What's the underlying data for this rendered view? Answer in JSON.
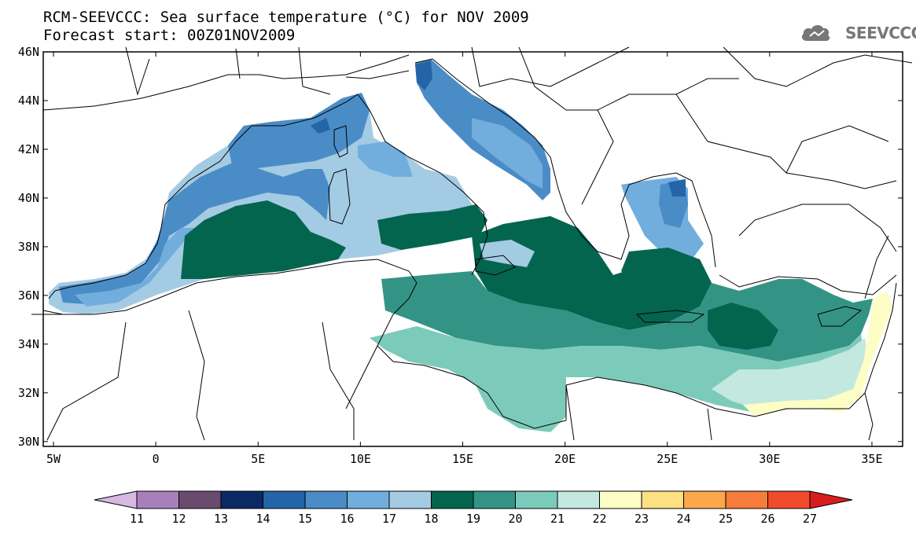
{
  "header": {
    "title_line1": "RCM-SEEVCCC: Sea surface temperature (°C) for NOV 2009",
    "title_line2": "Forecast start: 00Z01NOV2009"
  },
  "logo": {
    "text": "SEEVCCC",
    "icon": "cloud-icon"
  },
  "map": {
    "lat_labels": [
      "46N",
      "44N",
      "42N",
      "40N",
      "38N",
      "36N",
      "34N",
      "32N",
      "30N"
    ],
    "lon_labels": [
      "5W",
      "0",
      "5E",
      "10E",
      "15E",
      "20E",
      "25E",
      "30E",
      "35E"
    ],
    "lat_values": [
      46,
      44,
      42,
      40,
      38,
      36,
      34,
      32,
      30
    ],
    "lon_values": [
      -5,
      0,
      5,
      10,
      15,
      20,
      25,
      30,
      35
    ],
    "lon_range": [
      -5.5,
      36.5
    ],
    "lat_range": [
      29.8,
      46
    ]
  },
  "colorbar": {
    "labels": [
      "11",
      "12",
      "13",
      "14",
      "15",
      "16",
      "17",
      "18",
      "19",
      "20",
      "21",
      "22",
      "23",
      "24",
      "25",
      "26",
      "27"
    ],
    "colors": [
      "#d6b8e2",
      "#a97fbb",
      "#6a4a6e",
      "#0b2a64",
      "#2465a8",
      "#4a8cc6",
      "#72aedd",
      "#a4cbe4",
      "#04654f",
      "#339485",
      "#7ccbba",
      "#c3e8df",
      "#fdfdc6",
      "#fde083",
      "#fba84a",
      "#f57c3a",
      "#ef4b2c",
      "#d71e1e"
    ],
    "label_start_index": 1
  }
}
